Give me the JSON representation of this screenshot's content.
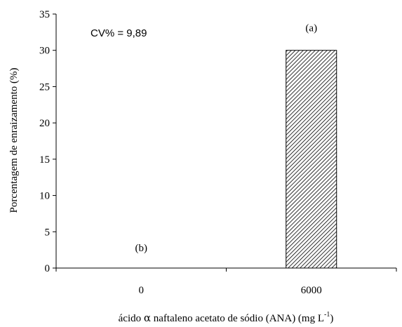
{
  "chart_data": {
    "type": "bar",
    "categories": [
      "0",
      "6000"
    ],
    "values": [
      0,
      30
    ],
    "bar_labels": [
      "(b)",
      "(a)"
    ],
    "annotation": "CV% = 9,89",
    "ylabel": "Porcentagem de enraizamento (%)",
    "xlabel": {
      "prefix": "ácido ",
      "alpha": "α",
      "middle": " naftaleno acetato de sódio (ANA) (mg L",
      "superscript": "-1",
      "suffix": ")"
    },
    "ylim": [
      0,
      35
    ],
    "yticks": [
      0,
      5,
      10,
      15,
      20,
      25,
      30,
      35
    ],
    "bar_fill": "diagonal hatch",
    "colors": {
      "bar_edge": "#000000",
      "hatch": "#000000"
    }
  }
}
